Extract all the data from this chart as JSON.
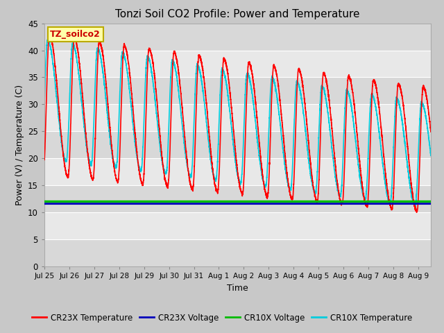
{
  "title": "Tonzi Soil CO2 Profile: Power and Temperature",
  "xlabel": "Time",
  "ylabel": "Power (V) / Temperature (C)",
  "annotation": "TZ_soilco2",
  "ylim": [
    0,
    45
  ],
  "yticks": [
    0,
    5,
    10,
    15,
    20,
    25,
    30,
    35,
    40,
    45
  ],
  "total_days": 15.5,
  "x_tick_labels": [
    "Jul 25",
    "Jul 26",
    "Jul 27",
    "Jul 28",
    "Jul 29",
    "Jul 30",
    "Jul 31",
    "Aug 1",
    "Aug 2",
    "Aug 3",
    "Aug 4",
    "Aug 5",
    "Aug 6",
    "Aug 7",
    "Aug 8",
    "Aug 9"
  ],
  "cr23x_voltage_level": 11.6,
  "cr10x_voltage_level": 12.0,
  "cr23x_color": "#FF0000",
  "cr23x_voltage_color": "#0000BB",
  "cr10x_voltage_color": "#00BB00",
  "cr10x_color": "#00CCDD",
  "fig_bg_color": "#C8C8C8",
  "plot_bg_color": "#E8E8E8",
  "grid_color": "#FFFFFF",
  "line_width": 1.2,
  "annotation_bg": "#FFFFAA",
  "annotation_border": "#BBAA00",
  "legend_labels": [
    "CR23X Temperature",
    "CR23X Voltage",
    "CR10X Voltage",
    "CR10X Temperature"
  ]
}
